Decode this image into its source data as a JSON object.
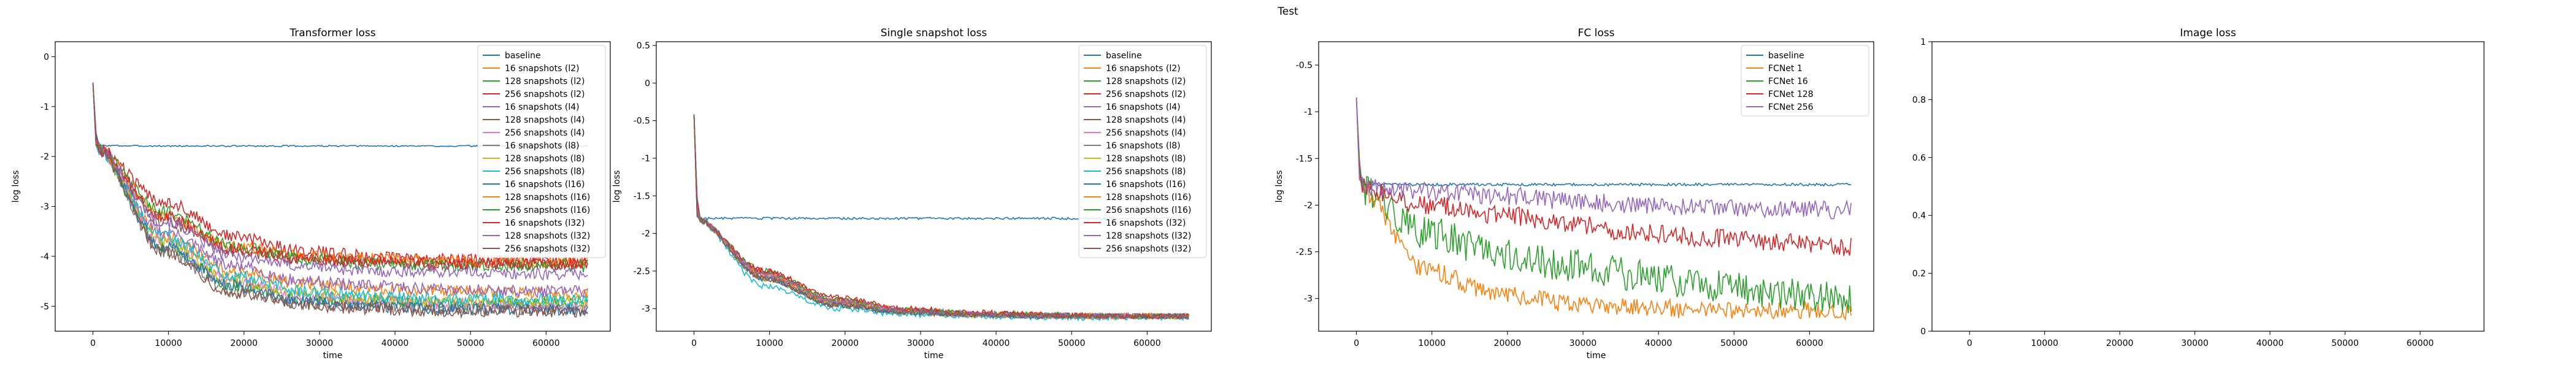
{
  "suptitle": "Test",
  "chart_data": [
    {
      "type": "line",
      "title": "Transformer loss",
      "xlabel": "time",
      "ylabel": "log loss",
      "xlim": [
        -5000,
        68500
      ],
      "ylim": [
        -5.5,
        0.3
      ],
      "xticks": [
        0,
        10000,
        20000,
        30000,
        40000,
        50000,
        60000
      ],
      "yticks": [
        0,
        -1,
        -2,
        -3,
        -4,
        -5
      ],
      "grid": false,
      "legend": "top-right",
      "series": [
        {
          "name": "baseline",
          "color": "#1f77b4",
          "values": [
            -1.78,
            -1.79,
            -1.79,
            -1.79,
            -1.79,
            -1.79,
            -1.79,
            -1.79
          ]
        },
        {
          "name": "16 snapshots (l2)",
          "color": "#ff7f0e",
          "values": [
            -1.8,
            -3.6,
            -4.3,
            -4.55,
            -4.65,
            -4.7,
            -4.72,
            -4.75
          ]
        },
        {
          "name": "128 snapshots (l2)",
          "color": "#2ca02c",
          "values": [
            -1.8,
            -3.8,
            -4.6,
            -4.85,
            -4.9,
            -4.95,
            -4.95,
            -4.95
          ]
        },
        {
          "name": "256 snapshots (l2)",
          "color": "#d62728",
          "values": [
            -1.8,
            -2.9,
            -3.6,
            -3.9,
            -4.0,
            -4.05,
            -4.1,
            -4.12
          ]
        },
        {
          "name": "16 snapshots (l4)",
          "color": "#9467bd",
          "values": [
            -1.8,
            -3.5,
            -4.2,
            -4.5,
            -4.6,
            -4.65,
            -4.7,
            -4.7
          ]
        },
        {
          "name": "128 snapshots (l4)",
          "color": "#8c564b",
          "values": [
            -1.8,
            -3.3,
            -3.9,
            -4.05,
            -4.1,
            -4.15,
            -4.15,
            -4.15
          ]
        },
        {
          "name": "256 snapshots (l4)",
          "color": "#e377c2",
          "values": [
            -1.8,
            -3.7,
            -4.5,
            -4.8,
            -4.9,
            -4.95,
            -5.0,
            -5.0
          ]
        },
        {
          "name": "16 snapshots (l8)",
          "color": "#7f7f7f",
          "values": [
            -1.8,
            -3.9,
            -4.7,
            -4.95,
            -5.0,
            -5.05,
            -5.05,
            -5.05
          ]
        },
        {
          "name": "128 snapshots (l8)",
          "color": "#bcbd22",
          "values": [
            -1.8,
            -3.7,
            -4.5,
            -4.75,
            -4.85,
            -4.9,
            -4.9,
            -4.9
          ]
        },
        {
          "name": "256 snapshots (l8)",
          "color": "#17becf",
          "values": [
            -1.8,
            -3.6,
            -4.4,
            -4.7,
            -4.8,
            -4.85,
            -4.85,
            -4.9
          ]
        },
        {
          "name": "16 snapshots (l16)",
          "color": "#1f77b4",
          "values": [
            -1.8,
            -3.8,
            -4.6,
            -4.9,
            -5.0,
            -5.05,
            -5.05,
            -5.1
          ]
        },
        {
          "name": "128 snapshots (l16)",
          "color": "#ff7f0e",
          "values": [
            -1.8,
            -3.2,
            -3.8,
            -4.0,
            -4.05,
            -4.1,
            -4.1,
            -4.1
          ]
        },
        {
          "name": "256 snapshots (l16)",
          "color": "#2ca02c",
          "values": [
            -1.8,
            -3.1,
            -3.8,
            -4.05,
            -4.15,
            -4.2,
            -4.2,
            -4.2
          ]
        },
        {
          "name": "16 snapshots (l32)",
          "color": "#d62728",
          "values": [
            -1.8,
            -3.2,
            -3.85,
            -4.05,
            -4.1,
            -4.15,
            -4.15,
            -4.15
          ]
        },
        {
          "name": "128 snapshots (l32)",
          "color": "#9467bd",
          "values": [
            -1.8,
            -3.3,
            -4.0,
            -4.2,
            -4.3,
            -4.3,
            -4.35,
            -4.35
          ]
        },
        {
          "name": "256 snapshots (l32)",
          "color": "#8c564b",
          "values": [
            -1.8,
            -3.9,
            -4.75,
            -5.0,
            -5.05,
            -5.1,
            -5.1,
            -5.1
          ]
        }
      ]
    },
    {
      "type": "line",
      "title": "Single snapshot loss",
      "xlabel": "time",
      "ylabel": "log loss",
      "xlim": [
        -5000,
        68500
      ],
      "ylim": [
        -3.3,
        0.55
      ],
      "xticks": [
        0,
        10000,
        20000,
        30000,
        40000,
        50000,
        60000
      ],
      "yticks": [
        0.5,
        0.0,
        -0.5,
        -1.0,
        -1.5,
        -2.0,
        -2.5,
        -3.0
      ],
      "grid": false,
      "legend": "top-right",
      "series": [
        {
          "name": "baseline",
          "color": "#1f77b4",
          "values": [
            -1.8,
            -1.8,
            -1.8,
            -1.8,
            -1.8,
            -1.8,
            -1.8,
            -1.8
          ]
        },
        {
          "name": "16 snapshots (l2)",
          "color": "#ff7f0e",
          "values": [
            -1.8,
            -2.6,
            -2.95,
            -3.05,
            -3.08,
            -3.1,
            -3.1,
            -3.1
          ]
        },
        {
          "name": "128 snapshots (l2)",
          "color": "#2ca02c",
          "values": [
            -1.8,
            -2.55,
            -2.9,
            -3.03,
            -3.07,
            -3.1,
            -3.1,
            -3.1
          ]
        },
        {
          "name": "256 snapshots (l2)",
          "color": "#d62728",
          "values": [
            -1.8,
            -2.5,
            -2.88,
            -3.02,
            -3.07,
            -3.09,
            -3.1,
            -3.1
          ]
        },
        {
          "name": "16 snapshots (l4)",
          "color": "#9467bd",
          "values": [
            -1.8,
            -2.6,
            -2.93,
            -3.04,
            -3.08,
            -3.1,
            -3.1,
            -3.1
          ]
        },
        {
          "name": "128 snapshots (l4)",
          "color": "#8c564b",
          "values": [
            -1.8,
            -2.55,
            -2.92,
            -3.03,
            -3.07,
            -3.09,
            -3.1,
            -3.1
          ]
        },
        {
          "name": "256 snapshots (l4)",
          "color": "#e377c2",
          "values": [
            -1.8,
            -2.55,
            -2.9,
            -3.02,
            -3.06,
            -3.08,
            -3.1,
            -3.1
          ]
        },
        {
          "name": "16 snapshots (l8)",
          "color": "#7f7f7f",
          "values": [
            -1.8,
            -2.6,
            -2.95,
            -3.05,
            -3.08,
            -3.1,
            -3.1,
            -3.1
          ]
        },
        {
          "name": "128 snapshots (l8)",
          "color": "#bcbd22",
          "values": [
            -1.8,
            -2.6,
            -2.93,
            -3.04,
            -3.08,
            -3.1,
            -3.1,
            -3.1
          ]
        },
        {
          "name": "256 snapshots (l8)",
          "color": "#17becf",
          "values": [
            -1.8,
            -2.7,
            -3.0,
            -3.08,
            -3.1,
            -3.12,
            -3.12,
            -3.12
          ]
        },
        {
          "name": "16 snapshots (l16)",
          "color": "#1f77b4",
          "values": [
            -1.8,
            -2.6,
            -2.95,
            -3.05,
            -3.08,
            -3.1,
            -3.1,
            -3.1
          ]
        },
        {
          "name": "128 snapshots (l16)",
          "color": "#ff7f0e",
          "values": [
            -1.8,
            -2.55,
            -2.9,
            -3.02,
            -3.07,
            -3.09,
            -3.1,
            -3.1
          ]
        },
        {
          "name": "256 snapshots (l16)",
          "color": "#2ca02c",
          "values": [
            -1.8,
            -2.5,
            -2.88,
            -3.02,
            -3.06,
            -3.08,
            -3.1,
            -3.1
          ]
        },
        {
          "name": "16 snapshots (l32)",
          "color": "#d62728",
          "values": [
            -1.8,
            -2.5,
            -2.85,
            -3.0,
            -3.05,
            -3.08,
            -3.1,
            -3.1
          ]
        },
        {
          "name": "128 snapshots (l32)",
          "color": "#9467bd",
          "values": [
            -1.8,
            -2.55,
            -2.9,
            -3.03,
            -3.07,
            -3.09,
            -3.1,
            -3.1
          ]
        },
        {
          "name": "256 snapshots (l32)",
          "color": "#8c564b",
          "values": [
            -1.8,
            -2.6,
            -2.95,
            -3.05,
            -3.08,
            -3.1,
            -3.1,
            -3.1
          ]
        }
      ]
    },
    {
      "type": "line",
      "title": "FC loss",
      "xlabel": "time",
      "ylabel": "log loss",
      "xlim": [
        -5000,
        68500
      ],
      "ylim": [
        -3.35,
        -0.25
      ],
      "xticks": [
        0,
        10000,
        20000,
        30000,
        40000,
        50000,
        60000
      ],
      "yticks": [
        -0.5,
        -1.0,
        -1.5,
        -2.0,
        -2.5,
        -3.0
      ],
      "grid": false,
      "legend": "top-right",
      "series": [
        {
          "name": "baseline",
          "color": "#1f77b4",
          "values": [
            -1.78,
            -1.78,
            -1.78,
            -1.78,
            -1.78,
            -1.78,
            -1.78,
            -1.78
          ]
        },
        {
          "name": "FCNet 1",
          "color": "#ff7f0e",
          "values": [
            -1.8,
            -2.7,
            -2.95,
            -3.05,
            -3.1,
            -3.12,
            -3.13,
            -3.13
          ]
        },
        {
          "name": "FCNet 16",
          "color": "#2ca02c",
          "values": [
            -1.8,
            -2.3,
            -2.5,
            -2.65,
            -2.75,
            -2.85,
            -2.95,
            -3.0
          ]
        },
        {
          "name": "FCNet 128",
          "color": "#d62728",
          "values": [
            -1.8,
            -2.0,
            -2.1,
            -2.2,
            -2.3,
            -2.35,
            -2.4,
            -2.45
          ]
        },
        {
          "name": "FCNet 256",
          "color": "#9467bd",
          "values": [
            -1.8,
            -1.85,
            -1.9,
            -1.95,
            -2.0,
            -2.02,
            -2.04,
            -2.05
          ]
        }
      ]
    },
    {
      "type": "line",
      "title": "Image loss",
      "xlabel": "",
      "ylabel": "",
      "xlim": [
        -5000,
        68500
      ],
      "ylim": [
        0.0,
        1.0
      ],
      "xticks": [
        0,
        10000,
        20000,
        30000,
        40000,
        50000,
        60000
      ],
      "yticks": [
        0.0,
        0.2,
        0.4,
        0.6,
        0.8,
        1.0
      ],
      "grid": false,
      "series": []
    }
  ]
}
